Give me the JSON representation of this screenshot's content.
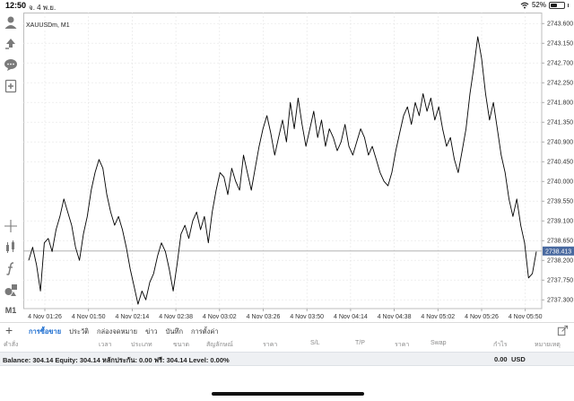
{
  "status_bar": {
    "time": "12:50",
    "date": "จ. 4 พ.ย.",
    "battery_percent": "52%",
    "battery_level": 0.52
  },
  "toolbar": {
    "items": [
      "account-icon",
      "trade-icon",
      "chat-icon",
      "add-chart-icon",
      "crosshair-icon",
      "indicators-icon",
      "function-icon",
      "objects-icon",
      "timeframe"
    ],
    "timeframe_label": "M1"
  },
  "chart": {
    "symbol_label": "XAUUSDm, M1",
    "current_price": "2738.413",
    "y_ticks": [
      "2743.600",
      "2743.150",
      "2742.700",
      "2742.250",
      "2741.800",
      "2741.350",
      "2740.900",
      "2740.450",
      "2740.000",
      "2739.550",
      "2739.100",
      "2738.650",
      "2738.200",
      "2737.750",
      "2737.300"
    ],
    "x_ticks": [
      "4 Nov 01:26",
      "4 Nov 01:50",
      "4 Nov 02:14",
      "4 Nov 02:38",
      "4 Nov 03:02",
      "4 Nov 03:26",
      "4 Nov 03:50",
      "4 Nov 04:14",
      "4 Nov 04:38",
      "4 Nov 05:02",
      "4 Nov 05:26",
      "4 Nov 05:50"
    ]
  },
  "chart_data": {
    "type": "line",
    "title": "XAUUSDm, M1",
    "ylim": [
      2737.1,
      2743.85
    ],
    "x_unit": "minutes after 4 Nov 01:26 (1 point per minute)",
    "values": [
      2738.2,
      2738.5,
      2738.1,
      2737.5,
      2738.6,
      2738.7,
      2738.4,
      2738.9,
      2739.2,
      2739.6,
      2739.3,
      2739.0,
      2738.5,
      2738.2,
      2738.8,
      2739.2,
      2739.8,
      2740.2,
      2740.5,
      2740.3,
      2739.7,
      2739.3,
      2739.0,
      2739.2,
      2738.9,
      2738.5,
      2738.0,
      2737.6,
      2737.2,
      2737.5,
      2737.3,
      2737.7,
      2737.9,
      2738.3,
      2738.6,
      2738.4,
      2738.0,
      2737.5,
      2738.1,
      2738.8,
      2739.0,
      2738.7,
      2739.1,
      2739.3,
      2738.9,
      2739.2,
      2738.6,
      2739.3,
      2739.8,
      2740.2,
      2740.1,
      2739.7,
      2740.3,
      2740.0,
      2739.8,
      2740.6,
      2740.2,
      2739.8,
      2740.3,
      2740.8,
      2741.2,
      2741.5,
      2741.1,
      2740.6,
      2741.0,
      2741.4,
      2740.9,
      2741.8,
      2741.2,
      2741.9,
      2741.3,
      2740.8,
      2741.2,
      2741.6,
      2741.0,
      2741.4,
      2740.8,
      2741.2,
      2741.0,
      2740.7,
      2740.9,
      2741.3,
      2740.8,
      2740.6,
      2740.9,
      2741.2,
      2741.0,
      2740.6,
      2740.8,
      2740.5,
      2740.2,
      2740.0,
      2739.9,
      2740.2,
      2740.7,
      2741.1,
      2741.5,
      2741.7,
      2741.3,
      2741.8,
      2741.5,
      2742.0,
      2741.6,
      2741.9,
      2741.4,
      2741.7,
      2741.2,
      2740.8,
      2741.0,
      2740.5,
      2740.2,
      2740.7,
      2741.2,
      2742.0,
      2742.6,
      2743.3,
      2742.8,
      2742.0,
      2741.4,
      2741.8,
      2741.2,
      2740.6,
      2740.2,
      2739.6,
      2739.2,
      2739.6,
      2739.0,
      2738.6,
      2737.8,
      2737.9,
      2738.4
    ]
  },
  "tabs": {
    "add_label": "+",
    "items": [
      "การซื้อขาย",
      "ประวัติ",
      "กล่องจดหมาย",
      "ข่าว",
      "บันทึก",
      "การตั้งค่า"
    ]
  },
  "columns": [
    "คำสั่ง",
    "เวลา",
    "ประเภท",
    "ขนาด",
    "สัญลักษณ์",
    "ราคา",
    "S/L",
    "T/P",
    "ราคา",
    "Swap",
    "กำไร",
    "หมายเหตุ"
  ],
  "balance": {
    "text": "Balance: 304.14 Equity: 304.14 หลักประกัน: 0.00 ฟรี: 304.14 Level: 0.00%",
    "profit": "0.00",
    "currency": "USD"
  },
  "colors": {
    "accent": "#1f6fd1",
    "price_label_bg": "#4a6aa0",
    "line": "#000000",
    "grid": "#e4e4e4"
  }
}
